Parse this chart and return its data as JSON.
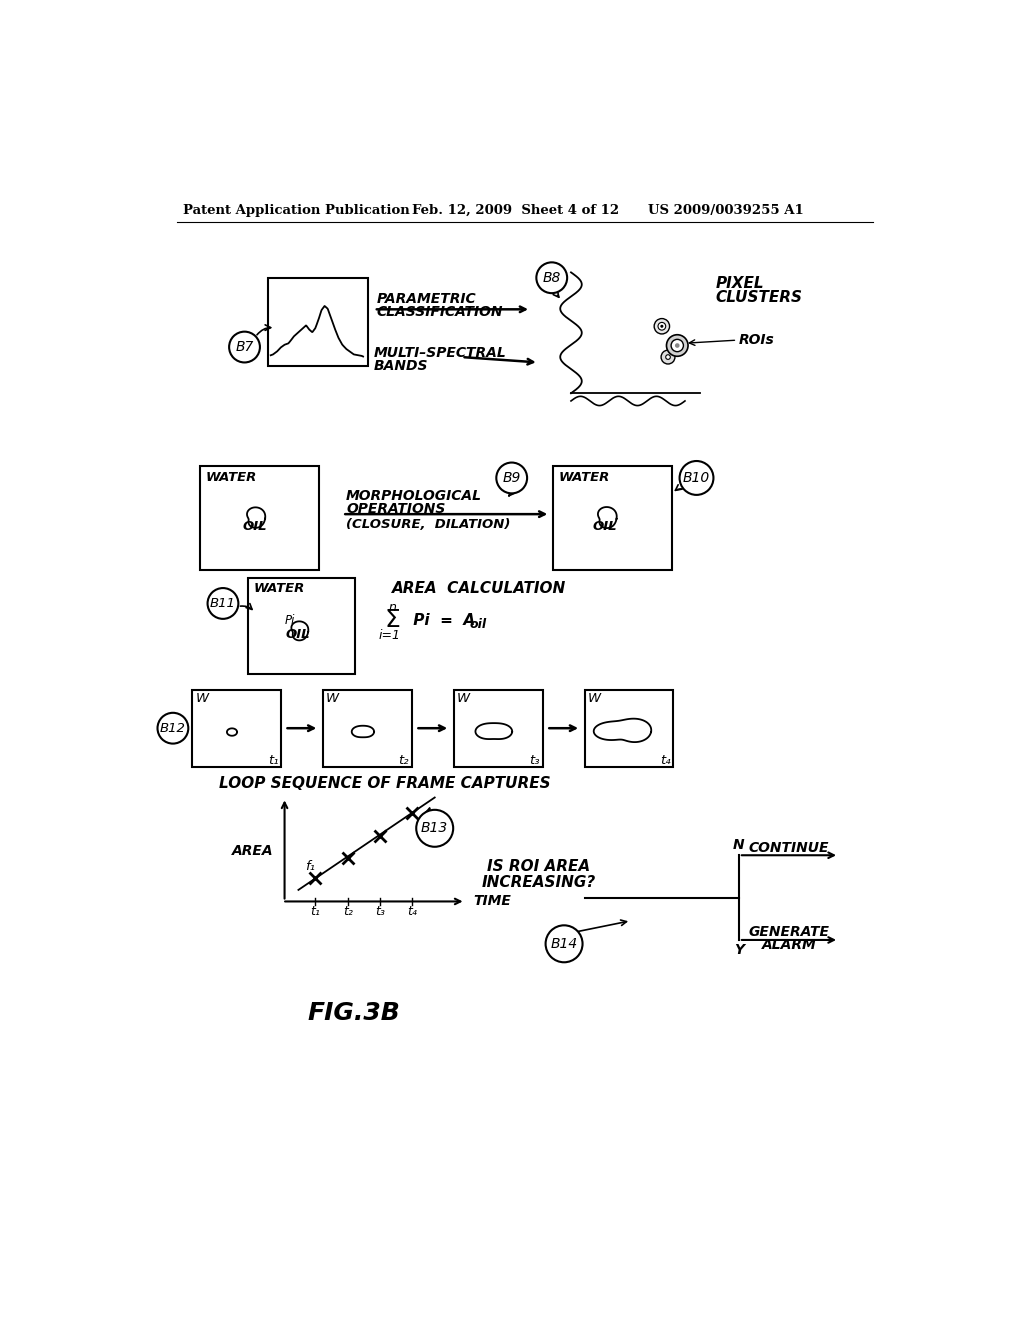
{
  "bg_color": "#ffffff",
  "header_left": "Patent Application Publication",
  "header_mid": "Feb. 12, 2009  Sheet 4 of 12",
  "header_right": "US 2009/0039255 A1",
  "fig_label": "FIG.3B",
  "title_loop": "LOOP SEQUENCE OF FRAME CAPTURES"
}
